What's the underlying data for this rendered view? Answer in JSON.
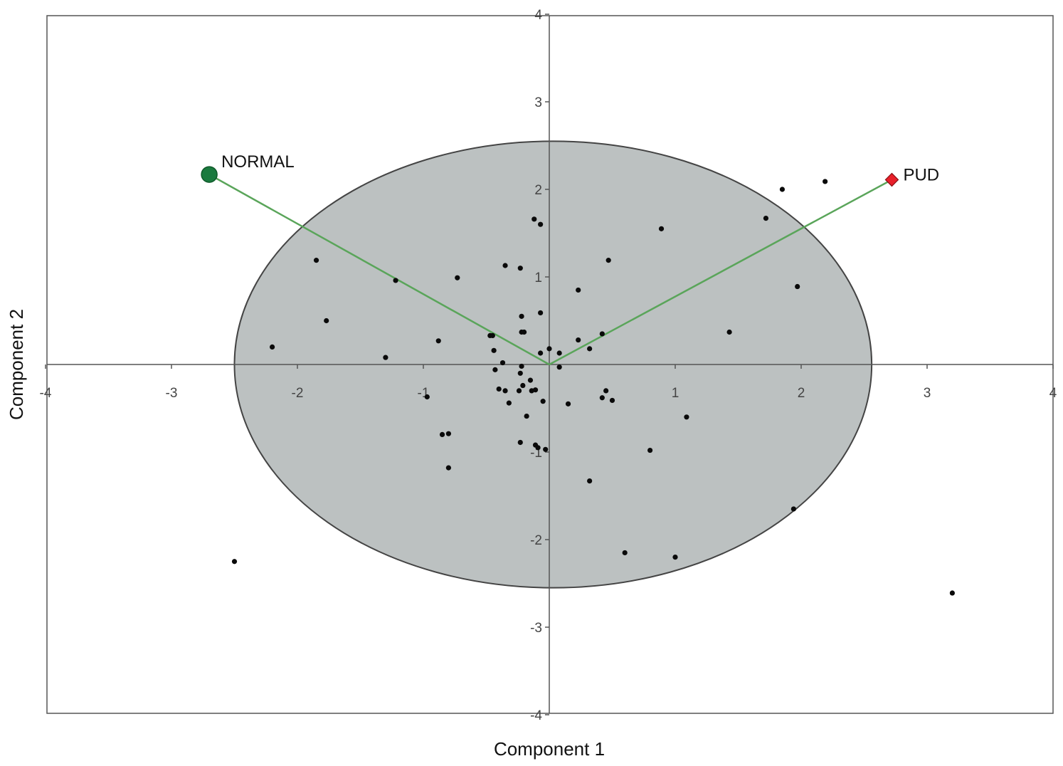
{
  "chart_data": {
    "type": "scatter",
    "title": "",
    "xlabel": "Component 1",
    "ylabel": "Component 2",
    "xlim": [
      -4,
      4
    ],
    "ylim": [
      -4,
      4
    ],
    "xticks": [
      -4,
      -3,
      -2,
      -1,
      1,
      2,
      3,
      4
    ],
    "yticks": [
      4,
      3,
      2,
      1,
      -1,
      -2,
      -3,
      -4
    ],
    "grid": false,
    "confidence_ellipse": {
      "cx": 0.03,
      "cy": 0.0,
      "rx": 2.53,
      "ry": 2.55,
      "fill": "#bcc1c1",
      "stroke": "#444444"
    },
    "loading_vectors": [
      {
        "name": "NORMAL",
        "x": -2.7,
        "y": 2.17,
        "color": "#1a7a3e",
        "marker": "circle"
      },
      {
        "name": "PUD",
        "x": 2.72,
        "y": 2.11,
        "color": "#e8202a",
        "marker": "diamond"
      }
    ],
    "vector_color": "#5aa55a",
    "points": [
      [
        -2.5,
        -2.25
      ],
      [
        -2.2,
        0.2
      ],
      [
        -1.85,
        1.19
      ],
      [
        -1.77,
        0.5
      ],
      [
        -1.3,
        0.08
      ],
      [
        -1.22,
        0.96
      ],
      [
        -0.97,
        -0.37
      ],
      [
        -0.88,
        0.27
      ],
      [
        -0.85,
        -0.8
      ],
      [
        -0.8,
        -0.79
      ],
      [
        -0.8,
        -1.18
      ],
      [
        -0.73,
        0.99
      ],
      [
        -0.47,
        0.33
      ],
      [
        -0.45,
        0.33
      ],
      [
        -0.44,
        0.16
      ],
      [
        -0.43,
        -0.06
      ],
      [
        -0.4,
        -0.28
      ],
      [
        -0.37,
        0.02
      ],
      [
        -0.35,
        1.13
      ],
      [
        -0.35,
        -0.3
      ],
      [
        -0.32,
        -0.44
      ],
      [
        -0.24,
        -0.3
      ],
      [
        -0.23,
        -0.1
      ],
      [
        -0.23,
        -0.89
      ],
      [
        -0.23,
        1.1
      ],
      [
        -0.22,
        0.55
      ],
      [
        -0.22,
        0.37
      ],
      [
        -0.2,
        0.37
      ],
      [
        -0.22,
        -0.02
      ],
      [
        -0.21,
        -0.24
      ],
      [
        -0.18,
        -0.59
      ],
      [
        -0.15,
        -0.18
      ],
      [
        -0.14,
        -0.3
      ],
      [
        -0.12,
        1.66
      ],
      [
        -0.11,
        -0.92
      ],
      [
        -0.11,
        -0.29
      ],
      [
        -0.09,
        -0.95
      ],
      [
        -0.07,
        1.6
      ],
      [
        -0.07,
        0.59
      ],
      [
        -0.07,
        0.13
      ],
      [
        -0.05,
        -0.42
      ],
      [
        -0.03,
        -0.97
      ],
      [
        0.0,
        0.18
      ],
      [
        0.08,
        -0.03
      ],
      [
        0.08,
        0.13
      ],
      [
        0.15,
        -0.45
      ],
      [
        0.23,
        0.85
      ],
      [
        0.23,
        0.28
      ],
      [
        0.32,
        -1.33
      ],
      [
        0.32,
        0.18
      ],
      [
        0.42,
        0.35
      ],
      [
        0.42,
        -0.38
      ],
      [
        0.45,
        -0.3
      ],
      [
        0.47,
        1.19
      ],
      [
        0.5,
        -0.41
      ],
      [
        0.6,
        -2.15
      ],
      [
        0.8,
        -0.98
      ],
      [
        0.89,
        1.55
      ],
      [
        1.0,
        -2.2
      ],
      [
        1.09,
        -0.6
      ],
      [
        1.43,
        0.37
      ],
      [
        1.72,
        1.67
      ],
      [
        1.85,
        2.0
      ],
      [
        1.94,
        -1.65
      ],
      [
        1.97,
        0.89
      ],
      [
        2.19,
        2.09
      ],
      [
        3.2,
        -2.61
      ]
    ]
  }
}
